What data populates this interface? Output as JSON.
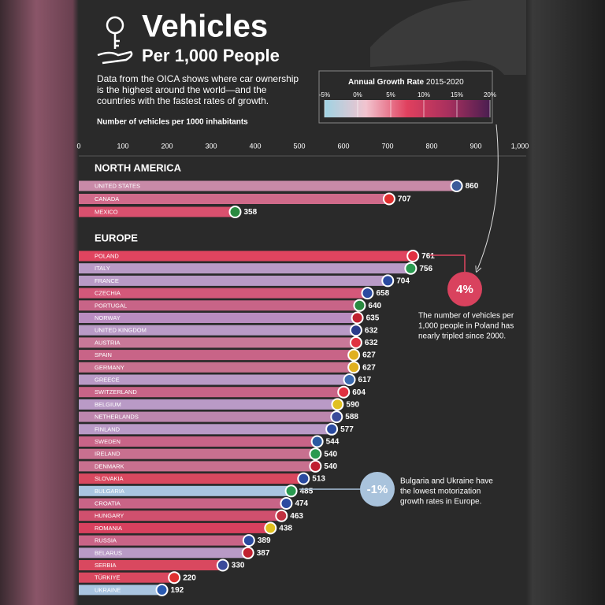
{
  "chart_data": {
    "type": "bar",
    "orientation": "horizontal",
    "title": "Vehicles",
    "subtitle": "Per 1,000 People",
    "description": [
      "Data from the OICA shows where car ownership",
      "is the highest around the world—and the",
      "countries with the fastest rates of growth."
    ],
    "axis_label": "Number of vehicles per 1000 inhabitants",
    "xlim": [
      0,
      1000
    ],
    "xticks": [
      0,
      100,
      200,
      300,
      400,
      500,
      600,
      700,
      800,
      900,
      {
        "value": 1000,
        "label": "1,000"
      }
    ],
    "legend": {
      "title": "Annual Growth Rate",
      "period": "2015-2020",
      "lim": [
        -5,
        20
      ],
      "ticks": [
        {
          "value": -5,
          "label": "-5%"
        },
        {
          "value": 0,
          "label": "0%"
        },
        {
          "value": 5,
          "label": "5%"
        },
        {
          "value": 10,
          "label": "10%"
        },
        {
          "value": 15,
          "label": "15%"
        },
        {
          "value": 20,
          "label": "20%"
        }
      ],
      "colors": [
        "#9fd3e3",
        "#f2c4cf",
        "#e0405e",
        "#a8305e",
        "#4a1e50"
      ]
    },
    "groups": [
      {
        "name": "NORTH AMERICA",
        "categories": [
          "UNITED STATES",
          "CANADA",
          "MEXICO"
        ],
        "values": [
          860,
          707,
          358
        ],
        "colors": [
          "#c98aa8",
          "#d06a8a",
          "#d9506e"
        ]
      },
      {
        "name": "EUROPE",
        "categories": [
          "POLAND",
          "ITALY",
          "FRANCE",
          "CZECHIA",
          "PORTUGAL",
          "NORWAY",
          "UNITED KINGDOM",
          "AUSTRIA",
          "SPAIN",
          "GERMANY",
          "GREECE",
          "SWITZERLAND",
          "BELGIUM",
          "NETHERLANDS",
          "FINLAND",
          "SWEDEN",
          "IRELAND",
          "DENMARK",
          "SLOVAKIA",
          "BULGARIA",
          "CROATIA",
          "HUNGARY",
          "ROMANIA",
          "RUSSIA",
          "BELARUS",
          "SERBIA",
          "TÜRKIYE",
          "UKRAINE"
        ],
        "values": [
          761,
          756,
          704,
          658,
          640,
          635,
          632,
          632,
          627,
          627,
          617,
          604,
          590,
          588,
          577,
          544,
          540,
          540,
          513,
          485,
          474,
          463,
          438,
          389,
          387,
          330,
          220,
          192
        ],
        "colors": [
          "#e0445f",
          "#b99ac6",
          "#b99ac6",
          "#d4587a",
          "#c86487",
          "#b98cc0",
          "#b99ac6",
          "#c87898",
          "#c86487",
          "#c8708f",
          "#b99ac6",
          "#c86487",
          "#b99ac6",
          "#bd86ad",
          "#b99ac6",
          "#c86487",
          "#c8708f",
          "#c8708f",
          "#d9485f",
          "#a9c5e0",
          "#c86487",
          "#d0506e",
          "#d8405e",
          "#c86487",
          "#b99ac6",
          "#d9485f",
          "#d9485f",
          "#a9c5e0"
        ]
      }
    ],
    "annotations": [
      {
        "label": "4%",
        "text": [
          "The number of vehicles per",
          "1,000 people in Poland has",
          "nearly tripled since 2000."
        ]
      },
      {
        "label": "-1%",
        "text": [
          "Bulgaria and Ukraine have",
          "the lowest motorization",
          "growth rates in Europe."
        ]
      }
    ]
  }
}
